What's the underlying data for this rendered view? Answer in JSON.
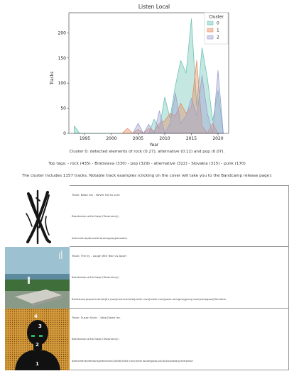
{
  "page": {
    "background": "#ffffff"
  },
  "chart_data": {
    "type": "area",
    "title": "Listen Local",
    "xlabel": "Year",
    "ylabel": "Tracks",
    "xlim": [
      1992,
      2022
    ],
    "ylim": [
      0,
      240
    ],
    "x_ticks": [
      1995,
      2000,
      2005,
      2010,
      2015,
      2020
    ],
    "y_ticks": [
      0,
      50,
      100,
      150,
      200
    ],
    "grid": false,
    "legend": {
      "title": "Cluster",
      "placement": "top-right"
    },
    "series": [
      {
        "name": "0",
        "color": "#6cc3b4",
        "x": [
          1993,
          1994,
          2007,
          2008,
          2009,
          2010,
          2011,
          2012,
          2013,
          2014,
          2015,
          2016,
          2017,
          2018,
          2019,
          2020,
          2021
        ],
        "y": [
          15,
          0,
          0,
          28,
          10,
          72,
          30,
          95,
          145,
          120,
          228,
          55,
          170,
          110,
          25,
          85,
          0
        ]
      },
      {
        "name": "1",
        "color": "#e8895c",
        "x": [
          2002,
          2003,
          2004,
          2005,
          2006,
          2007,
          2008,
          2009,
          2010,
          2011,
          2012,
          2013,
          2014,
          2015,
          2016,
          2017,
          2018,
          2019,
          2020,
          2021
        ],
        "y": [
          0,
          10,
          0,
          8,
          0,
          10,
          5,
          20,
          25,
          40,
          35,
          60,
          40,
          52,
          145,
          15,
          0,
          20,
          0,
          0
        ]
      },
      {
        "name": "2",
        "color": "#9b9fd3",
        "x": [
          2004,
          2005,
          2006,
          2007,
          2008,
          2009,
          2010,
          2011,
          2012,
          2013,
          2014,
          2015,
          2016,
          2017,
          2018,
          2019,
          2020,
          2021
        ],
        "y": [
          0,
          20,
          0,
          18,
          0,
          45,
          0,
          20,
          80,
          20,
          35,
          70,
          35,
          115,
          40,
          0,
          125,
          0
        ]
      }
    ]
  },
  "captions": {
    "cluster": "Cluster 0: detected elements of rock (0.27), alternative (0.12) and pop (0.07).",
    "tags": "Top tags: - rock (435) - Bratislava (330) - pop (329) - alternative (322) - Slovakia (315) - punk (170)",
    "intro": "The cluster includes 1157 tracks. Notable track examples (clicking on the cover will take you to the Bandcamp release page):"
  },
  "tracks": [
    {
      "title": "Track: Bapa ron - Never fall to sure",
      "artist": "Bandcamp artist tags (Taxonomy):",
      "tags": "alternative|atmosfere|emo|pop|slovakia"
    },
    {
      "title": "Track: The Ily - Laugh Will Tear Us Apart",
      "artist": "Bandcamp artist tags (Taxonomy):",
      "tags": "Bratislava|experimental|fre jazz|instrumental|math rock|math-rock|post-rock|prog|prog rock|shoegaze|Slovakia"
    },
    {
      "title": "Track: Susan Sonic - Stop Dawn Inc.",
      "artist": "Bandcamp artist tags (Taxonomy):",
      "tags": "alternative|demons|electronic|indie|indie rock|new wave|post-punk|slovakia|synthwave"
    }
  ]
}
